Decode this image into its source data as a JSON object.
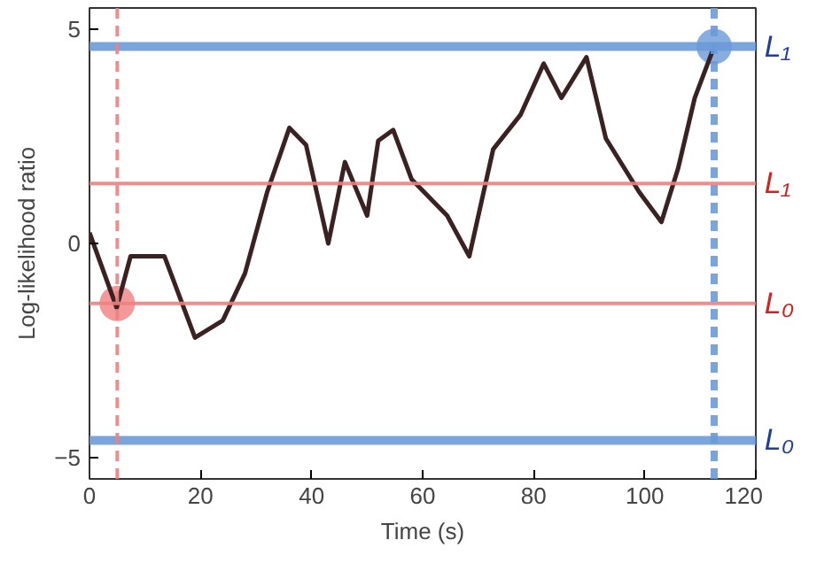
{
  "chart_data": {
    "type": "line",
    "xlabel": "Time (s)",
    "ylabel": "Log-likelihood ratio",
    "xlim": [
      0,
      120
    ],
    "ylim": [
      -5.5,
      5.5
    ],
    "xticks": [
      0,
      20,
      40,
      60,
      80,
      100,
      120
    ],
    "yticks": [
      -5,
      0,
      5
    ],
    "grid": false,
    "series": [
      {
        "color": "#3a2222",
        "x": [
          0,
          4.9,
          7.4,
          13.5,
          19,
          24,
          28,
          32,
          36,
          39,
          43,
          46,
          50,
          52,
          54.7,
          58,
          64.4,
          68.4,
          72.7,
          77.6,
          81.8,
          85,
          89.5,
          93,
          99,
          103,
          106,
          109,
          112.5
        ],
        "values": [
          0.25,
          -1.5,
          -0.3,
          -0.3,
          -2.2,
          -1.8,
          -0.7,
          1.2,
          2.7,
          2.3,
          0,
          1.9,
          0.65,
          2.4,
          2.65,
          1.5,
          0.65,
          -0.3,
          2.2,
          3,
          4.2,
          3.4,
          4.35,
          2.45,
          1.2,
          0.5,
          1.75,
          3.4,
          4.6
        ]
      },
      {
        "type": "scatter",
        "color": "#f08080",
        "x": [
          5
        ],
        "values": [
          -1.4
        ],
        "marker": "circle"
      },
      {
        "type": "scatter",
        "color": "#6a9ad8",
        "x": [
          112.5
        ],
        "values": [
          4.6
        ],
        "marker": "circle"
      }
    ],
    "ref_lines": [
      {
        "axis": "y",
        "value": 4.6,
        "label": "L₁",
        "color": "#6a9ad8",
        "line_style": "solid"
      },
      {
        "axis": "y",
        "value": 1.4,
        "label": "L₁",
        "color": "#f08080",
        "line_style": "solid"
      },
      {
        "axis": "y",
        "value": -1.4,
        "label": "L₀",
        "color": "#f08080",
        "line_style": "solid"
      },
      {
        "axis": "y",
        "value": -4.6,
        "label": "L₀",
        "color": "#6a9ad8",
        "line_style": "solid"
      },
      {
        "axis": "x",
        "value": 5,
        "color": "#f08080",
        "line_style": "dashed"
      },
      {
        "axis": "x",
        "value": 112.5,
        "color": "#6a9ad8",
        "line_style": "dashed"
      }
    ]
  }
}
